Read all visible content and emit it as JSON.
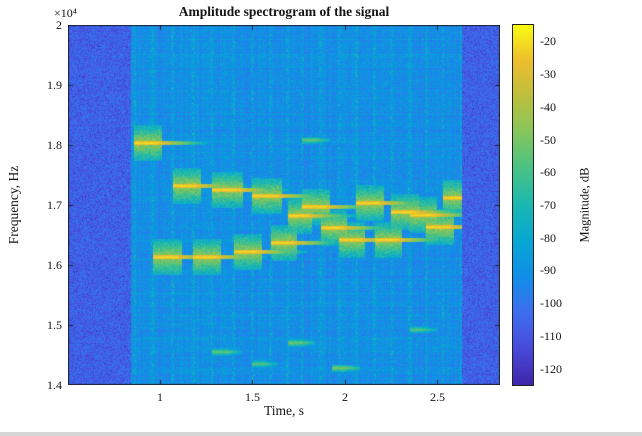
{
  "chart_data": {
    "type": "heatmap",
    "subtype": "spectrogram",
    "title": "Amplitude spectrogram of the signal",
    "xlabel": "Time, s",
    "ylabel": "Frequency, Hz",
    "y_multiplier_label": "×10⁴",
    "colorbar_label": "Magnitude, dB",
    "colormap": "parula",
    "x_range": [
      0.503,
      2.838
    ],
    "y_range": [
      14000,
      20000
    ],
    "caxis": [
      -125,
      -15
    ],
    "x_ticks": [
      1,
      1.5,
      2,
      2.5
    ],
    "x_tick_labels": [
      "1",
      "1.5",
      "2",
      "2.5"
    ],
    "y_ticks": [
      14000,
      15000,
      16000,
      17000,
      18000,
      19000,
      20000
    ],
    "y_tick_labels": [
      "1.4",
      "1.5",
      "1.6",
      "1.7",
      "1.8",
      "1.9",
      "2"
    ],
    "colorbar_ticks": [
      -20,
      -30,
      -40,
      -50,
      -60,
      -70,
      -80,
      -90,
      -100,
      -110,
      -120
    ],
    "colorbar_tick_labels": [
      "-20",
      "-30",
      "-40",
      "-50",
      "-60",
      "-70",
      "-80",
      "-90",
      "-100",
      "-110",
      "-120"
    ],
    "colormap_stops": [
      [
        0.0,
        62,
        38,
        168
      ],
      [
        0.1,
        72,
        74,
        217
      ],
      [
        0.2,
        62,
        109,
        239
      ],
      [
        0.3,
        17,
        142,
        231
      ],
      [
        0.4,
        7,
        166,
        212
      ],
      [
        0.5,
        27,
        183,
        177
      ],
      [
        0.6,
        72,
        194,
        134
      ],
      [
        0.7,
        132,
        198,
        92
      ],
      [
        0.8,
        188,
        191,
        62
      ],
      [
        0.9,
        237,
        189,
        47
      ],
      [
        1.0,
        249,
        251,
        14
      ]
    ],
    "noise": {
      "background_db": -107,
      "background_sigma": 5.5,
      "signal_region_db": -91,
      "signal_sigma": 4,
      "signal_time_range": [
        0.845,
        2.635
      ]
    },
    "notes": [
      {
        "t0": 0.86,
        "t1": 0.98,
        "f": 18030
      },
      {
        "t0": 0.96,
        "t1": 1.09,
        "f": 16130
      },
      {
        "t0": 1.07,
        "t1": 1.19,
        "f": 17320
      },
      {
        "t0": 1.18,
        "t1": 1.3,
        "f": 16130
      },
      {
        "t0": 1.28,
        "t1": 1.42,
        "f": 17250
      },
      {
        "t0": 1.4,
        "t1": 1.52,
        "f": 16220
      },
      {
        "t0": 1.5,
        "t1": 1.63,
        "f": 17150
      },
      {
        "t0": 1.6,
        "t1": 1.71,
        "f": 16370
      },
      {
        "t0": 1.69,
        "t1": 1.79,
        "f": 16820
      },
      {
        "t0": 1.77,
        "t1": 1.89,
        "f": 16970
      },
      {
        "t0": 1.87,
        "t1": 1.98,
        "f": 16620
      },
      {
        "t0": 1.97,
        "t1": 2.08,
        "f": 16420
      },
      {
        "t0": 2.06,
        "t1": 2.18,
        "f": 17030
      },
      {
        "t0": 2.16,
        "t1": 2.28,
        "f": 16420
      },
      {
        "t0": 2.25,
        "t1": 2.37,
        "f": 16880
      },
      {
        "t0": 2.35,
        "t1": 2.47,
        "f": 16830
      },
      {
        "t0": 2.44,
        "t1": 2.56,
        "f": 16630
      },
      {
        "t0": 2.53,
        "t1": 2.63,
        "f": 17120
      }
    ],
    "harmonics": [
      {
        "t0": 1.28,
        "t1": 1.36,
        "f": 14550,
        "db": -52
      },
      {
        "t0": 1.5,
        "t1": 1.56,
        "f": 14350,
        "db": -55
      },
      {
        "t0": 1.69,
        "t1": 1.76,
        "f": 14700,
        "db": -50
      },
      {
        "t0": 1.77,
        "t1": 1.84,
        "f": 18080,
        "db": -52
      },
      {
        "t0": 1.93,
        "t1": 2.0,
        "f": 14280,
        "db": -48
      },
      {
        "t0": 2.35,
        "t1": 2.42,
        "f": 14920,
        "db": -55
      }
    ]
  }
}
